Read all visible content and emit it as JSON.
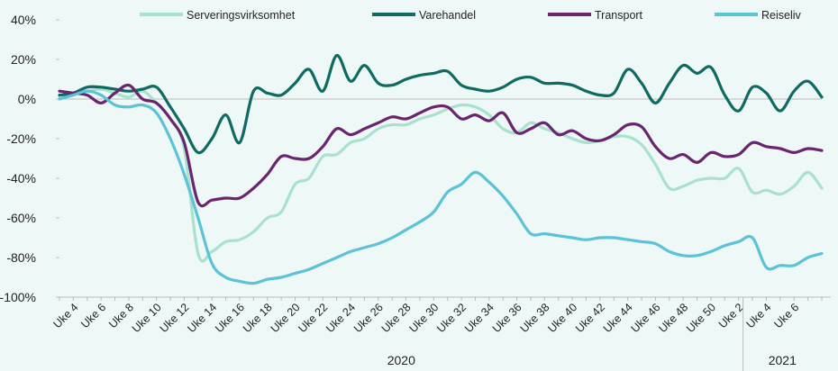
{
  "chart_data": {
    "type": "line",
    "categories": [
      null,
      "Uke 4",
      null,
      "Uke 6",
      null,
      "Uke 8",
      null,
      "Uke 10",
      null,
      "Uke 12",
      null,
      "Uke 14",
      null,
      "Uke 16",
      null,
      "Uke 18",
      null,
      "Uke 20",
      null,
      "Uke 22",
      null,
      "Uke 24",
      null,
      "Uke 26",
      null,
      "Uke 28",
      null,
      "Uke 30",
      null,
      "Uke 32",
      null,
      "Uke 34",
      null,
      "Uke 36",
      null,
      "Uke 38",
      null,
      "Uke 40",
      null,
      "Uke 42",
      null,
      "Uke 44",
      null,
      "Uke 46",
      null,
      "Uke 48",
      null,
      "Uke 50",
      null,
      "Uke 2",
      null,
      "Uke 4",
      null,
      "Uke 6",
      null,
      null
    ],
    "x_groups": [
      "2020",
      "2021"
    ],
    "series": [
      {
        "name": "Serveringsvirksomhet",
        "color": "#a8e2cf",
        "values": [
          1,
          3,
          4,
          5,
          3,
          1,
          4,
          -2,
          -10,
          -25,
          -78,
          -77,
          -72,
          -71,
          -67,
          -60,
          -57,
          -43,
          -40,
          -29,
          -28,
          -22,
          -20,
          -15,
          -13,
          -13,
          -10,
          -8,
          -5,
          -3,
          -4,
          -8,
          -15,
          -17,
          -12,
          -15,
          -17,
          -20,
          -22,
          -21,
          -19,
          -19,
          -23,
          -33,
          -45,
          -44,
          -41,
          -40,
          -40,
          -35,
          -47,
          -46,
          -48,
          -44,
          -37,
          -45
        ]
      },
      {
        "name": "Varehandel",
        "color": "#0f6b62",
        "values": [
          2,
          3,
          6,
          6,
          5,
          4,
          5,
          6,
          -4,
          -15,
          -27,
          -20,
          -8,
          -22,
          4,
          3,
          2,
          8,
          15,
          4,
          22,
          9,
          17,
          8,
          7,
          10,
          12,
          13,
          14,
          7,
          5,
          4,
          6,
          10,
          11,
          8,
          8,
          7,
          4,
          2,
          3,
          15,
          8,
          -2,
          8,
          17,
          13,
          16,
          2,
          -6,
          6,
          3,
          -6,
          4,
          9,
          1
        ]
      },
      {
        "name": "Transport",
        "color": "#6a2470",
        "values": [
          4,
          3,
          2,
          -2,
          3,
          7,
          0,
          -2,
          -10,
          -22,
          -52,
          -51,
          -50,
          -50,
          -45,
          -38,
          -29,
          -30,
          -30,
          -24,
          -15,
          -18,
          -15,
          -12,
          -9,
          -10,
          -7,
          -4,
          -4,
          -10,
          -8,
          -11,
          -7,
          -17,
          -15,
          -12,
          -18,
          -16,
          -20,
          -21,
          -18,
          -13,
          -14,
          -24,
          -30,
          -28,
          -32,
          -27,
          -29,
          -28,
          -22,
          -24,
          -25,
          -27,
          -25,
          -26
        ]
      },
      {
        "name": "Reiseliv",
        "color": "#5bc2d8",
        "values": [
          0,
          2,
          4,
          2,
          -3,
          -4,
          -3,
          -7,
          -20,
          -38,
          -60,
          -83,
          -90,
          -92,
          -93,
          -91,
          -90,
          -88,
          -86,
          -83,
          -80,
          -77,
          -75,
          -73,
          -70,
          -66,
          -62,
          -57,
          -47,
          -43,
          -37,
          -42,
          -49,
          -58,
          -68,
          -68,
          -69,
          -70,
          -71,
          -70,
          -70,
          -71,
          -72,
          -73,
          -77,
          -79,
          -79,
          -77,
          -74,
          -72,
          -70,
          -85,
          -84,
          -84,
          -80,
          -78
        ]
      }
    ],
    "ylim": [
      -100,
      40
    ],
    "yticks": [
      {
        "value": -100,
        "label": "-100%"
      },
      {
        "value": -80,
        "label": "-80%"
      },
      {
        "value": -60,
        "label": "-60%"
      },
      {
        "value": -40,
        "label": "-40%"
      },
      {
        "value": -20,
        "label": "-20%"
      },
      {
        "value": 0,
        "label": "0%"
      },
      {
        "value": 20,
        "label": "20%"
      },
      {
        "value": 40,
        "label": "40%"
      }
    ],
    "legend": "top",
    "grid": false
  }
}
